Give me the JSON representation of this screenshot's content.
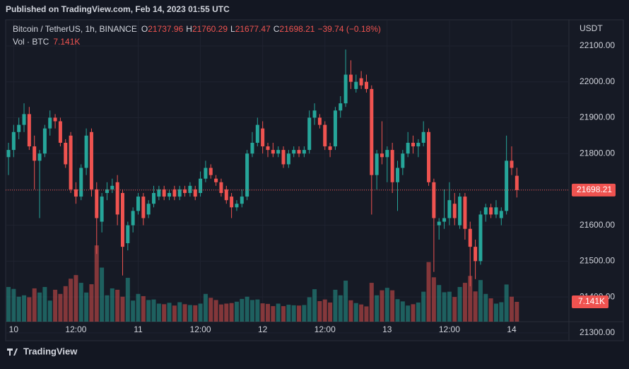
{
  "header": {
    "published": "Published on TradingView.com, Feb 14, 2023 01:55 UTC",
    "brand": "TradingView"
  },
  "chart_data": {
    "type": "candlestick",
    "symbol": "Bitcoin / TetherUS, 1h, BINANCE",
    "ohlc_labels": [
      "O",
      "H",
      "L",
      "C"
    ],
    "change": {
      "value": -39.74,
      "label": "−39.74 (−0.18%)"
    },
    "currency": "USDT",
    "volume_title": "Vol · BTC",
    "volume_label": "7.141K",
    "up_color": "#26a69a",
    "down_color": "#ef5350",
    "grid": true,
    "ylim": [
      21282,
      22169
    ],
    "yticks": [
      {
        "value": 21300,
        "label": "21300.00"
      },
      {
        "value": 21400,
        "label": "21400.00"
      },
      {
        "value": 21500,
        "label": "21500.00"
      },
      {
        "value": 21600,
        "label": "21600.00"
      },
      {
        "value": 21700,
        "label": "21700.00"
      },
      {
        "value": 21800,
        "label": "21800.00"
      },
      {
        "value": 21900,
        "label": "21900.00"
      },
      {
        "value": 22000,
        "label": "22000.00"
      },
      {
        "value": 22100,
        "label": "22100.00"
      }
    ],
    "xticks": [
      {
        "value": 1,
        "label": "10"
      },
      {
        "value": 13,
        "label": "12:00"
      },
      {
        "value": 25,
        "label": "11"
      },
      {
        "value": 37,
        "label": "12:00"
      },
      {
        "value": 49,
        "label": "12"
      },
      {
        "value": 61,
        "label": "12:00"
      },
      {
        "value": 73,
        "label": "13"
      },
      {
        "value": 85,
        "label": "12:00"
      },
      {
        "value": 97,
        "label": "14"
      }
    ],
    "candles": [
      [
        21790,
        21830,
        21740,
        21810
      ],
      [
        21810,
        21880,
        21790,
        21860
      ],
      [
        21860,
        21900,
        21840,
        21880
      ],
      [
        21880,
        21940,
        21860,
        21910
      ],
      [
        21910,
        21930,
        21810,
        21820
      ],
      [
        21820,
        21850,
        21700,
        21780
      ],
      [
        21780,
        21810,
        21620,
        21800
      ],
      [
        21800,
        21880,
        21790,
        21870
      ],
      [
        21870,
        21920,
        21850,
        21900
      ],
      [
        21900,
        21910,
        21870,
        21890
      ],
      [
        21890,
        21900,
        21820,
        21830
      ],
      [
        21830,
        21840,
        21760,
        21770
      ],
      [
        21850,
        21860,
        21690,
        21700
      ],
      [
        21700,
        21720,
        21660,
        21680
      ],
      [
        21680,
        21770,
        21670,
        21760
      ],
      [
        21760,
        21870,
        21740,
        21850
      ],
      [
        21860,
        21870,
        21680,
        21700
      ],
      [
        21700,
        21720,
        21520,
        21620
      ],
      [
        21610,
        21690,
        21580,
        21680
      ],
      [
        21690,
        21720,
        21670,
        21700
      ],
      [
        21700,
        21730,
        21690,
        21710
      ],
      [
        21720,
        21740,
        21600,
        21630
      ],
      [
        21690,
        21700,
        21460,
        21540
      ],
      [
        21550,
        21610,
        21530,
        21600
      ],
      [
        21600,
        21650,
        21580,
        21640
      ],
      [
        21640,
        21690,
        21630,
        21680
      ],
      [
        21680,
        21690,
        21600,
        21620
      ],
      [
        21630,
        21670,
        21620,
        21660
      ],
      [
        21660,
        21710,
        21650,
        21690
      ],
      [
        21680,
        21710,
        21670,
        21700
      ],
      [
        21700,
        21710,
        21670,
        21680
      ],
      [
        21680,
        21700,
        21670,
        21690
      ],
      [
        21700,
        21710,
        21670,
        21680
      ],
      [
        21680,
        21710,
        21670,
        21700
      ],
      [
        21700,
        21710,
        21680,
        21690
      ],
      [
        21690,
        21720,
        21680,
        21710
      ],
      [
        21700,
        21710,
        21670,
        21680
      ],
      [
        21690,
        21750,
        21680,
        21730
      ],
      [
        21730,
        21780,
        21720,
        21760
      ],
      [
        21760,
        21770,
        21730,
        21740
      ],
      [
        21730,
        21740,
        21710,
        21720
      ],
      [
        21720,
        21730,
        21680,
        21690
      ],
      [
        21700,
        21710,
        21660,
        21670
      ],
      [
        21680,
        21690,
        21620,
        21650
      ],
      [
        21650,
        21670,
        21640,
        21660
      ],
      [
        21660,
        21700,
        21650,
        21680
      ],
      [
        21680,
        21810,
        21670,
        21800
      ],
      [
        21800,
        21860,
        21790,
        21830
      ],
      [
        21830,
        21900,
        21820,
        21880
      ],
      [
        21870,
        21890,
        21800,
        21820
      ],
      [
        21820,
        21830,
        21790,
        21810
      ],
      [
        21810,
        21830,
        21790,
        21800
      ],
      [
        21800,
        21820,
        21790,
        21810
      ],
      [
        21810,
        21820,
        21760,
        21770
      ],
      [
        21770,
        21810,
        21760,
        21800
      ],
      [
        21800,
        21820,
        21790,
        21810
      ],
      [
        21810,
        21820,
        21790,
        21800
      ],
      [
        21800,
        21820,
        21790,
        21810
      ],
      [
        21810,
        21920,
        21800,
        21900
      ],
      [
        21900,
        21940,
        21880,
        21920
      ],
      [
        21900,
        21910,
        21870,
        21880
      ],
      [
        21880,
        21890,
        21810,
        21820
      ],
      [
        21820,
        21830,
        21790,
        21810
      ],
      [
        21820,
        21930,
        21810,
        21920
      ],
      [
        21920,
        21960,
        21900,
        21940
      ],
      [
        21940,
        22090,
        21930,
        22020
      ],
      [
        22020,
        22060,
        21980,
        22000
      ],
      [
        21980,
        22020,
        21970,
        22000
      ],
      [
        22010,
        22030,
        21980,
        21990
      ],
      [
        22000,
        22020,
        21970,
        21980
      ],
      [
        21980,
        21990,
        21630,
        21740
      ],
      [
        21740,
        21810,
        21700,
        21800
      ],
      [
        21800,
        21890,
        21770,
        21790
      ],
      [
        21790,
        21820,
        21720,
        21810
      ],
      [
        21810,
        21830,
        21690,
        21720
      ],
      [
        21720,
        21780,
        21640,
        21760
      ],
      [
        21760,
        21810,
        21740,
        21800
      ],
      [
        21800,
        21860,
        21790,
        21830
      ],
      [
        21830,
        21850,
        21800,
        21820
      ],
      [
        21820,
        21840,
        21790,
        21830
      ],
      [
        21830,
        21890,
        21820,
        21860
      ],
      [
        21860,
        21870,
        21710,
        21720
      ],
      [
        21720,
        21730,
        21470,
        21620
      ],
      [
        21600,
        21620,
        21560,
        21610
      ],
      [
        21610,
        21700,
        21590,
        21620
      ],
      [
        21620,
        21720,
        21600,
        21670
      ],
      [
        21660,
        21690,
        21600,
        21620
      ],
      [
        21600,
        21690,
        21590,
        21680
      ],
      [
        21680,
        21690,
        21560,
        21590
      ],
      [
        21590,
        21610,
        21430,
        21540
      ],
      [
        21540,
        21560,
        21450,
        21500
      ],
      [
        21500,
        21640,
        21490,
        21630
      ],
      [
        21630,
        21660,
        21610,
        21650
      ],
      [
        21650,
        21660,
        21620,
        21630
      ],
      [
        21630,
        21670,
        21620,
        21650
      ],
      [
        21620,
        21650,
        21600,
        21640
      ],
      [
        21640,
        21850,
        21630,
        21780
      ],
      [
        21780,
        21820,
        21740,
        21760
      ],
      [
        21737.96,
        21760.29,
        21677.47,
        21698.21
      ]
    ],
    "volumes": [
      12500,
      11800,
      9000,
      9500,
      8800,
      12000,
      10500,
      12500,
      7600,
      11500,
      10000,
      12800,
      15500,
      16800,
      14000,
      10500,
      13500,
      27500,
      19500,
      9500,
      12000,
      11500,
      9000,
      15800,
      7600,
      10000,
      9200,
      7800,
      8000,
      6500,
      6300,
      6800,
      5800,
      7000,
      6300,
      6000,
      5900,
      6500,
      10000,
      8600,
      7800,
      6200,
      6500,
      6700,
      7200,
      8200,
      9000,
      7800,
      8000,
      6600,
      6400,
      5600,
      6500,
      5600,
      6100,
      5900,
      5800,
      6000,
      8800,
      11700,
      7400,
      8000,
      6900,
      11500,
      9500,
      14800,
      7700,
      6700,
      6200,
      5500,
      14000,
      9500,
      11300,
      12200,
      11300,
      8100,
      7300,
      5800,
      6300,
      6900,
      10800,
      21500,
      16000,
      13200,
      10600,
      10800,
      8900,
      12500,
      14000,
      16500,
      10900,
      15000,
      10000,
      8400,
      6500,
      7000,
      13400,
      9000,
      7141
    ]
  }
}
